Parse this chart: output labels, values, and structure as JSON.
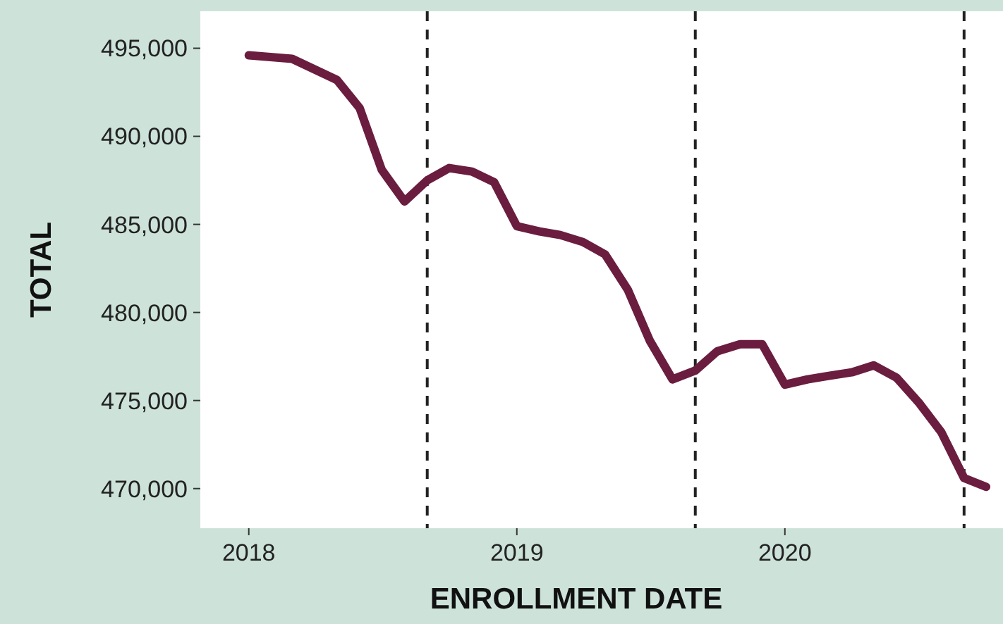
{
  "chart_data": {
    "type": "line",
    "xlabel": "ENROLLMENT DATE",
    "ylabel": "TOTAL",
    "x": [
      "2018-01",
      "2018-03",
      "2018-05",
      "2018-06",
      "2018-07",
      "2018-08",
      "2018-09",
      "2018-10",
      "2018-11",
      "2018-12",
      "2019-01",
      "2019-02",
      "2019-03",
      "2019-04",
      "2019-05",
      "2019-06",
      "2019-07",
      "2019-08",
      "2019-09",
      "2019-10",
      "2019-11",
      "2019-12",
      "2020-01",
      "2020-02",
      "2020-03",
      "2020-04",
      "2020-05",
      "2020-06",
      "2020-07",
      "2020-08",
      "2020-09",
      "2020-10"
    ],
    "series": [
      {
        "color": "#6b1d3f",
        "values": [
          494600,
          494400,
          493200,
          491600,
          488100,
          486300,
          487500,
          488200,
          488000,
          487400,
          484900,
          484600,
          484400,
          484000,
          483300,
          481300,
          478400,
          476200,
          476700,
          477800,
          478200,
          478200,
          475900,
          476200,
          476400,
          476600,
          477000,
          476300,
          474900,
          473200,
          470600,
          470100
        ]
      }
    ],
    "xlim": [
      "2017-10-27",
      "2020-10-24"
    ],
    "ylim": [
      467750,
      497100
    ],
    "xticks": [
      "2018",
      "2019",
      "2020"
    ],
    "yticks": [
      {
        "value": 470000,
        "label": "470,000"
      },
      {
        "value": 475000,
        "label": "475,000"
      },
      {
        "value": 480000,
        "label": "480,000"
      },
      {
        "value": 485000,
        "label": "485,000"
      },
      {
        "value": 490000,
        "label": "490,000"
      },
      {
        "value": 495000,
        "label": "495,000"
      }
    ],
    "ref_lines": [
      {
        "axis": "x",
        "value": "2018-09",
        "color": "#222222",
        "line_style": "dashed"
      },
      {
        "axis": "x",
        "value": "2019-09",
        "color": "#222222",
        "line_style": "dashed"
      },
      {
        "axis": "x",
        "value": "2020-09",
        "color": "#222222",
        "line_style": "dashed"
      }
    ],
    "grid": false
  }
}
